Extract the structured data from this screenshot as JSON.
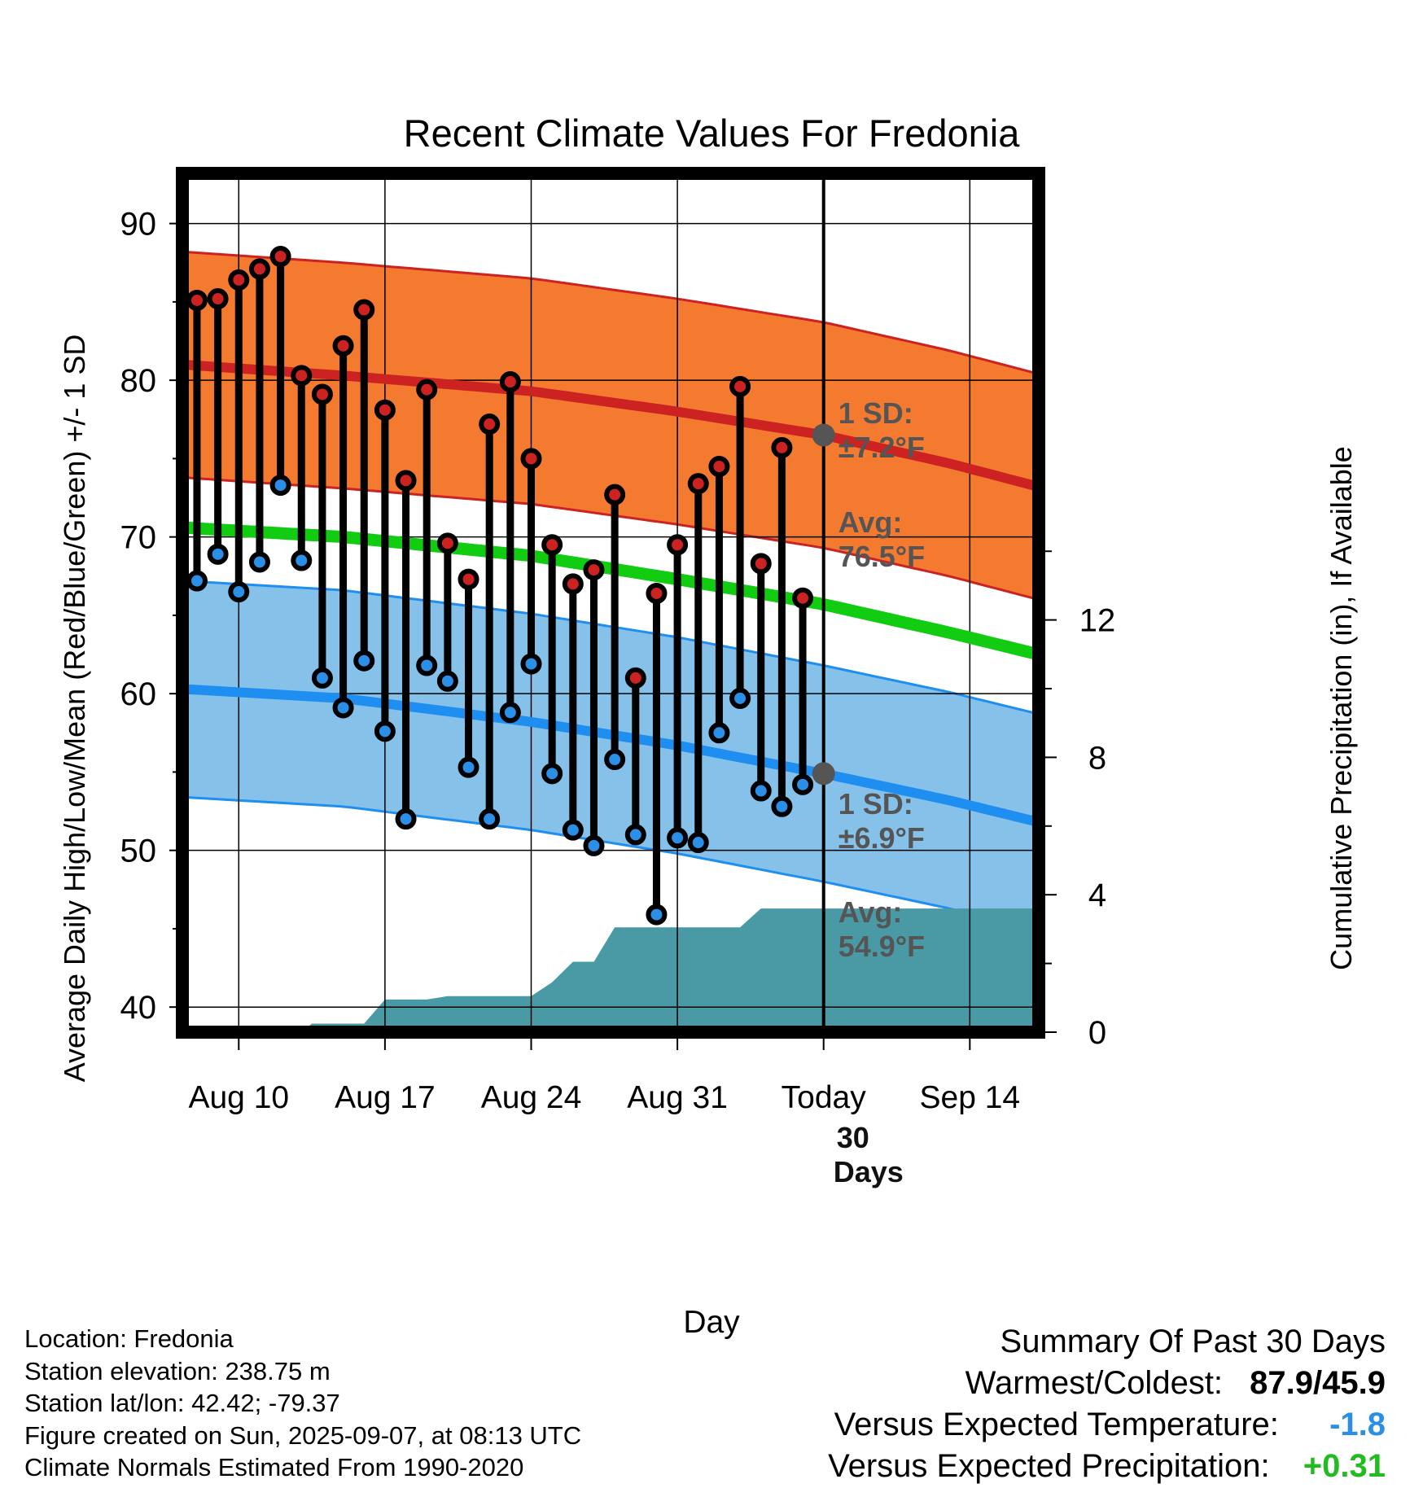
{
  "chart_data": {
    "type": "line",
    "title": "Recent Climate Values For Fredonia",
    "xlabel": "Day",
    "ylabel": "Average Daily High/Low/Mean (Red/Blue/Green) +/- 1 SD",
    "ylabel_right": "Cumulative Precipitation (in), If Available",
    "ylim": [
      38.4,
      93.2
    ],
    "ylim_right": [
      0,
      25
    ],
    "x_tick_labels": [
      {
        "day": 10,
        "label": "Aug 10"
      },
      {
        "day": 17,
        "label": "Aug 17"
      },
      {
        "day": 24,
        "label": "Aug 24"
      },
      {
        "day": 31,
        "label": "Aug 31"
      },
      {
        "day": 38,
        "label": "Today"
      },
      {
        "day": 45,
        "label": "Sep 14"
      }
    ],
    "x_range_days": [
      7.3,
      48.3
    ],
    "y_ticks_left": [
      40,
      50,
      60,
      70,
      80,
      90
    ],
    "y_ticks_right": [
      0,
      4,
      8,
      12
    ],
    "today_day": 38,
    "today_label": "Today",
    "daily": {
      "start_day": 8,
      "high": [
        85.1,
        85.2,
        86.4,
        87.1,
        87.9,
        80.3,
        79.1,
        82.2,
        84.5,
        78.1,
        73.6,
        79.4,
        69.6,
        67.3,
        77.2,
        79.9,
        75.0,
        69.5,
        67.0,
        67.9,
        72.7,
        61.0,
        66.4,
        69.5,
        73.4,
        74.5,
        79.6,
        68.3,
        75.7,
        66.1
      ],
      "low": [
        67.2,
        68.9,
        66.5,
        68.4,
        73.3,
        68.5,
        61.0,
        59.1,
        62.1,
        57.6,
        52.0,
        61.8,
        60.8,
        55.3,
        52.0,
        58.8,
        61.9,
        54.9,
        51.3,
        50.3,
        55.8,
        51.0,
        45.9,
        50.8,
        50.5,
        57.5,
        59.7,
        53.8,
        52.8,
        54.2
      ]
    },
    "normals": {
      "days": [
        7.3,
        15,
        24,
        31,
        38,
        44,
        48.3
      ],
      "high_avg": [
        81.0,
        80.3,
        79.3,
        78.0,
        76.5,
        74.7,
        73.2
      ],
      "high_sd": 7.2,
      "low_avg": [
        60.3,
        59.7,
        58.2,
        56.7,
        54.9,
        53.2,
        51.8
      ],
      "low_sd": 6.9,
      "mean_avg": [
        70.6,
        70.0,
        68.8,
        67.3,
        65.7,
        63.9,
        62.5
      ]
    },
    "precip_cumulative": {
      "days": [
        7.3,
        10,
        10.5,
        11,
        11.5,
        13,
        13.5,
        15,
        16,
        16.5,
        17,
        19,
        20,
        21,
        22,
        23,
        24,
        25,
        26,
        27,
        28,
        29,
        30,
        31,
        32,
        33,
        34,
        35,
        36,
        37,
        38,
        48.3
      ],
      "values": [
        0,
        0,
        0,
        0,
        0,
        0,
        0.25,
        0.25,
        0.25,
        0.6,
        0.95,
        0.95,
        1.05,
        1.05,
        1.05,
        1.05,
        1.05,
        1.45,
        2.05,
        2.05,
        3.05,
        3.05,
        3.05,
        3.05,
        3.05,
        3.05,
        3.05,
        3.6,
        3.6,
        3.6,
        3.6,
        3.6
      ]
    },
    "annotations": {
      "high_sd_label": "1 SD:",
      "high_sd_value": "±7.2°F",
      "high_avg_label": "Avg:",
      "high_avg_value": "76.5°F",
      "low_sd_label": "1 SD:",
      "low_sd_value": "±6.9°F",
      "low_avg_label": "Avg:",
      "low_avg_value": "54.9°F",
      "days_label_1": "30",
      "days_label_2": "Days"
    },
    "colors": {
      "high_band": "#f47a30",
      "high_line": "#cc2222",
      "low_band": "#85c1e9",
      "low_line": "#1e8ff0",
      "mean_line": "#11cc11",
      "precip": "#4a9aa5",
      "high_dot": "#cc2222",
      "low_dot": "#2b8fe8",
      "annotation": "#555555"
    }
  },
  "info": {
    "location": "Location: Fredonia",
    "elevation": "Station elevation: 238.75 m",
    "latlon": "Station lat/lon: 42.42; -79.37",
    "created": "Figure created on Sun, 2025-09-07, at 08:13 UTC",
    "normals": "Climate Normals Estimated From 1990-2020"
  },
  "summary": {
    "title": "Summary Of Past 30 Days",
    "warmest_label": "Warmest/Coldest:",
    "warmest_value": "87.9/45.9",
    "temp_label": "Versus Expected Temperature:",
    "temp_value": "-1.8",
    "temp_color": "#2b8fe8",
    "precip_label": "Versus Expected Precipitation:",
    "precip_value": "+0.31",
    "precip_color": "#22bb22"
  }
}
